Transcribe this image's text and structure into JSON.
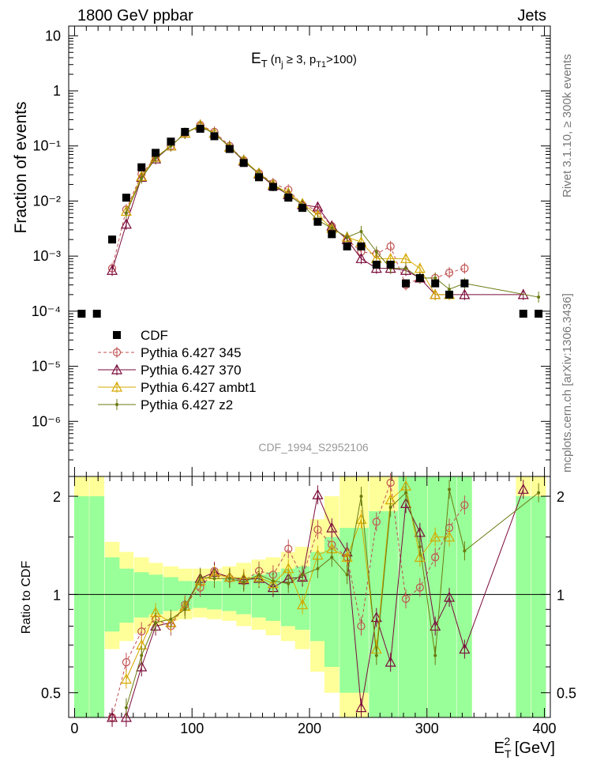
{
  "header": {
    "left": "1800 GeV ppbar",
    "right": "Jets"
  },
  "side_labels": {
    "rivet": "Rivet 3.1.10, ≥ 300k events",
    "mcplots": "mcplots.cern.ch [arXiv:1306.3436]"
  },
  "watermark": "CDF_1994_S2952106",
  "chart_data": {
    "type": "line",
    "title": "E_T (n_j ≥ 3, p_T1>100)",
    "ylabel": "Fraction of events",
    "ratio_ylabel": "Ratio to CDF",
    "xlabel": "E_T^2 [GeV]",
    "xlim": [
      -5,
      405
    ],
    "ylim": [
      1e-07,
      15
    ],
    "ratio_ylim": [
      0.42,
      2.3
    ],
    "x_ticks": [
      0,
      100,
      200,
      300,
      400
    ],
    "y_tick_labels": [
      "10",
      "1",
      "10⁻¹",
      "10⁻²",
      "10⁻³",
      "10⁻⁴",
      "10⁻⁵",
      "10⁻⁶"
    ],
    "ratio_ticks": [
      "0.5",
      "1",
      "2"
    ],
    "x": [
      6,
      19,
      32,
      44,
      57,
      69,
      82,
      94,
      107,
      119,
      132,
      144,
      157,
      169,
      182,
      194,
      207,
      219,
      232,
      244,
      257,
      269,
      282,
      294,
      307,
      319,
      332,
      345,
      382,
      395
    ],
    "cdf": [
      9e-05,
      9e-05,
      0.002,
      0.0115,
      0.041,
      0.075,
      0.12,
      0.18,
      0.205,
      0.15,
      0.088,
      0.049,
      0.027,
      0.018,
      0.0115,
      0.0075,
      0.0042,
      0.0025,
      0.0015,
      0.0015,
      0.0007,
      0.0007,
      0.00032,
      0.0004,
      0.00032,
      0.0002,
      0.00032,
      null,
      9e-05,
      9e-05
    ],
    "ratio_band": {
      "green": [
        [
          2,
          0.4
        ],
        [
          2,
          0.4
        ],
        [
          1.3,
          0.77
        ],
        [
          1.2,
          0.82
        ],
        [
          1.17,
          0.85
        ],
        [
          1.15,
          0.87
        ],
        [
          1.13,
          0.89
        ],
        [
          1.1,
          0.9
        ],
        [
          1.1,
          0.91
        ],
        [
          1.1,
          0.9
        ],
        [
          1.12,
          0.89
        ],
        [
          1.13,
          0.87
        ],
        [
          1.15,
          0.85
        ],
        [
          1.17,
          0.83
        ],
        [
          1.2,
          0.8
        ],
        [
          1.22,
          0.78
        ],
        [
          1.35,
          0.72
        ],
        [
          1.5,
          0.6
        ],
        [
          1.6,
          0.5
        ],
        [
          1.6,
          0.5
        ],
        [
          1.8,
          0.4
        ],
        [
          1.8,
          0.4
        ],
        [
          2.3,
          0.4
        ],
        [
          2.3,
          0.4
        ],
        [
          2.3,
          0.4
        ],
        [
          2.3,
          0.4
        ],
        [
          2.3,
          0.4
        ],
        [
          null,
          null
        ],
        [
          2,
          0.4
        ],
        [
          2,
          0.4
        ]
      ],
      "yellow": [
        [
          2.3,
          0.4
        ],
        [
          2.3,
          0.4
        ],
        [
          1.45,
          0.68
        ],
        [
          1.35,
          0.72
        ],
        [
          1.3,
          0.76
        ],
        [
          1.25,
          0.8
        ],
        [
          1.22,
          0.83
        ],
        [
          1.2,
          0.84
        ],
        [
          1.2,
          0.85
        ],
        [
          1.2,
          0.84
        ],
        [
          1.22,
          0.83
        ],
        [
          1.25,
          0.8
        ],
        [
          1.28,
          0.78
        ],
        [
          1.3,
          0.75
        ],
        [
          1.35,
          0.72
        ],
        [
          1.4,
          0.68
        ],
        [
          1.7,
          0.58
        ],
        [
          2.0,
          0.5
        ],
        [
          2.3,
          0.4
        ],
        [
          2.3,
          0.4
        ],
        [
          2.3,
          0.4
        ],
        [
          2.3,
          0.4
        ],
        [
          2.3,
          0.4
        ],
        [
          2.3,
          0.4
        ],
        [
          2.3,
          0.4
        ],
        [
          2.3,
          0.4
        ],
        [
          2.3,
          0.4
        ],
        [
          null,
          null
        ],
        [
          2.3,
          0.4
        ],
        [
          2.3,
          0.4
        ]
      ]
    },
    "series": [
      {
        "name": "Pythia 6.427 345",
        "color": "#c05050",
        "dash": "4,3",
        "marker": "circle",
        "values": [
          null,
          null,
          0.0006,
          0.007,
          0.031,
          0.062,
          0.1,
          0.17,
          0.24,
          0.18,
          0.1,
          0.055,
          0.032,
          0.021,
          0.016,
          0.0085,
          0.0068,
          0.0035,
          0.002,
          0.0012,
          0.0011,
          0.0015,
          0.0003,
          0.0004,
          0.0004,
          0.0005,
          0.0006,
          null,
          null,
          null
        ],
        "ratio": [
          null,
          null,
          0.3,
          0.62,
          0.77,
          0.84,
          0.8,
          0.93,
          1.05,
          1.18,
          1.12,
          1.1,
          1.18,
          1.15,
          1.38,
          1.13,
          1.58,
          1.42,
          1.3,
          0.8,
          1.67,
          2.2,
          0.97,
          1.05,
          1.3,
          1.6,
          1.88,
          null,
          null,
          null
        ]
      },
      {
        "name": "Pythia 6.427 370",
        "color": "#7a0a3a",
        "dash": "",
        "marker": "triangle-open",
        "values": [
          null,
          null,
          0.00055,
          0.0038,
          0.027,
          0.058,
          0.1,
          0.17,
          0.235,
          0.17,
          0.095,
          0.053,
          0.031,
          0.019,
          0.013,
          0.0085,
          0.0078,
          0.0035,
          0.002,
          0.0009,
          0.0006,
          0.0006,
          0.00055,
          0.0004,
          0.0002,
          0.0002,
          0.0002,
          null,
          0.0002,
          null
        ],
        "ratio": [
          null,
          null,
          0.28,
          0.33,
          0.6,
          0.8,
          0.82,
          0.92,
          1.12,
          1.17,
          1.13,
          1.11,
          1.12,
          1.05,
          1.12,
          1.13,
          2.02,
          1.6,
          1.35,
          0.45,
          0.85,
          0.62,
          1.9,
          1.55,
          0.8,
          0.98,
          0.68,
          null,
          2.1,
          null
        ]
      },
      {
        "name": "Pythia 6.427 ambt1",
        "color": "#d4a800",
        "dash": "",
        "marker": "triangle-open",
        "values": [
          null,
          null,
          null,
          0.0065,
          0.028,
          0.062,
          0.1,
          0.17,
          0.24,
          0.17,
          0.095,
          0.055,
          0.032,
          0.02,
          0.014,
          0.009,
          0.0055,
          0.0032,
          0.0022,
          0.0018,
          0.0009,
          0.0009,
          0.0009,
          0.0006,
          0.0002,
          0.0002,
          null,
          null,
          null,
          null
        ],
        "ratio": [
          null,
          null,
          null,
          0.55,
          0.7,
          0.88,
          0.82,
          0.92,
          1.1,
          1.15,
          1.13,
          1.12,
          1.13,
          1.08,
          1.2,
          0.93,
          1.32,
          1.38,
          1.3,
          1.7,
          0.68,
          1.95,
          2.15,
          1.3,
          1.5,
          1.5,
          null,
          null,
          null,
          null
        ]
      },
      {
        "name": "Pythia 6.427 z2",
        "color": "#6b7a10",
        "dash": "",
        "marker": "dot",
        "values": [
          null,
          null,
          null,
          0.006,
          0.026,
          0.06,
          0.1,
          0.17,
          0.23,
          0.165,
          0.098,
          0.054,
          0.031,
          0.02,
          0.013,
          0.0085,
          0.0045,
          0.0032,
          0.0022,
          0.0028,
          0.0012,
          0.0006,
          0.0006,
          0.0004,
          0.0004,
          0.00025,
          0.00032,
          null,
          null,
          0.00018
        ],
        "ratio": [
          null,
          null,
          null,
          0.45,
          0.65,
          0.82,
          0.84,
          0.9,
          1.13,
          1.12,
          1.12,
          1.09,
          1.15,
          1.1,
          1.08,
          1.15,
          1.2,
          1.3,
          1.15,
          2.0,
          0.65,
          1.85,
          2.05,
          1.4,
          0.65,
          2.1,
          1.36,
          null,
          null,
          2.05
        ]
      }
    ],
    "cdf_label": "CDF"
  }
}
